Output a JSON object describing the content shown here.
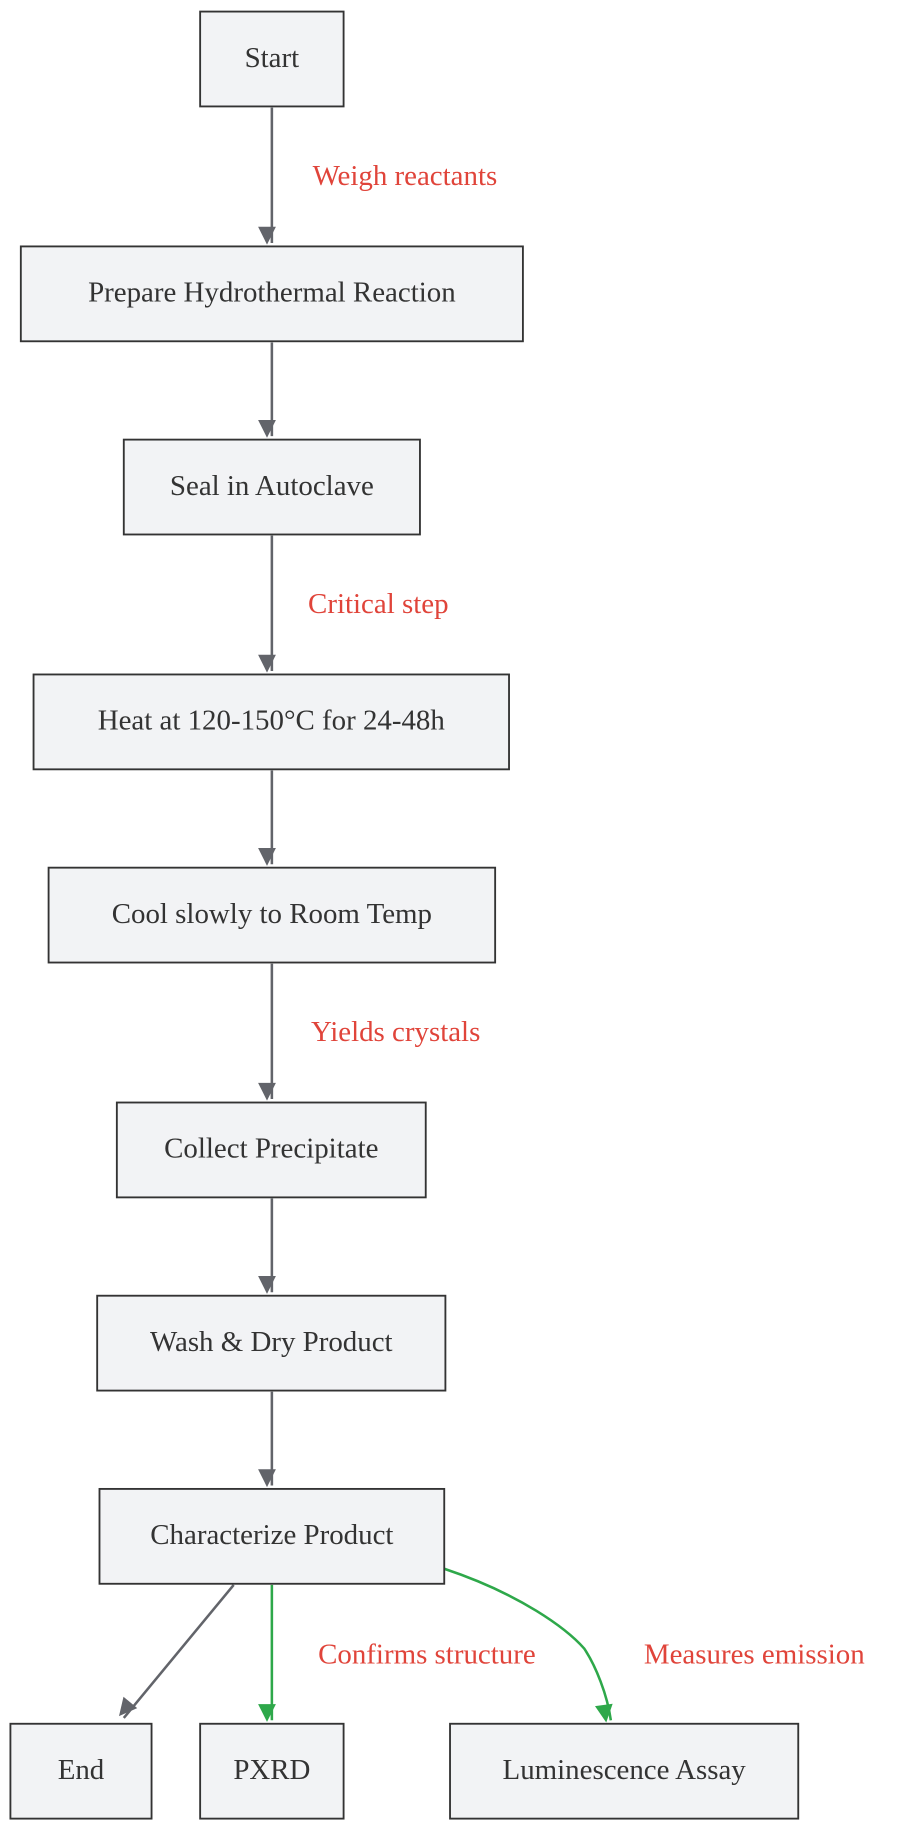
{
  "nodes": [
    {
      "label": "Start"
    },
    {
      "label": "Prepare Hydrothermal Reaction"
    },
    {
      "label": "Seal in Autoclave"
    },
    {
      "label": "Heat at 120-150°C for 24-48h"
    },
    {
      "label": "Cool slowly to Room Temp"
    },
    {
      "label": "Collect Precipitate"
    },
    {
      "label": "Wash & Dry Product"
    },
    {
      "label": "Characterize Product"
    },
    {
      "label": "End"
    },
    {
      "label": "PXRD"
    },
    {
      "label": "Luminescence Assay"
    }
  ],
  "edge_labels": [
    "Weigh reactants",
    "Critical step",
    "Yields crystals",
    "Confirms structure",
    "Measures emission"
  ]
}
